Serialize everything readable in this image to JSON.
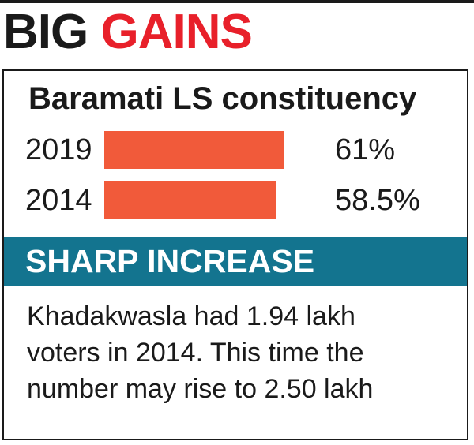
{
  "headline": {
    "word1": "BIG",
    "word2": "GAINS"
  },
  "colors": {
    "bar": "#f15a3a",
    "headline_accent": "#e8202a",
    "band": "#13748f"
  },
  "chart_data": {
    "type": "bar",
    "orientation": "horizontal",
    "title": "Baramati LS constituency",
    "categories": [
      "2019",
      "2014"
    ],
    "values": [
      61,
      58.5
    ],
    "value_labels": [
      "61%",
      "58.5%"
    ],
    "xlim": [
      0,
      100
    ]
  },
  "band": {
    "title": "SHARP INCREASE"
  },
  "note": {
    "lines": [
      "Khadakwasla had 1.94 lakh",
      "voters in 2014. This time the",
      "number may rise to 2.50 lakh"
    ]
  }
}
